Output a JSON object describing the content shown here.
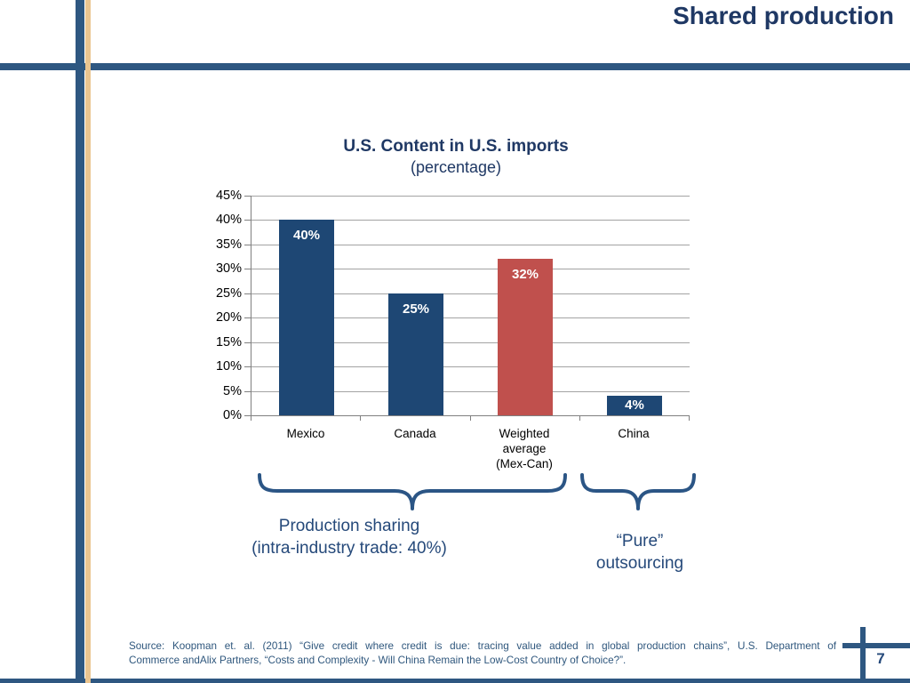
{
  "slide": {
    "title": "Shared production",
    "page_number": "7"
  },
  "chart_data": {
    "type": "bar",
    "title": "U.S. Content in U.S. imports",
    "subtitle": "(percentage)",
    "categories": [
      "Mexico",
      "Canada",
      "Weighted average (Mex-Can)",
      "China"
    ],
    "values": [
      40,
      25,
      32,
      4
    ],
    "bar_labels": [
      "40%",
      "25%",
      "32%",
      "4%"
    ],
    "bar_colors": [
      "#1e4774",
      "#1e4774",
      "#c0504d",
      "#1e4774"
    ],
    "xlabel": "",
    "ylabel": "",
    "ylim": [
      0,
      45
    ],
    "yticks": [
      "45%",
      "40%",
      "35%",
      "30%",
      "25%",
      "20%",
      "15%",
      "10%",
      "5%",
      "0%"
    ],
    "grid": true,
    "legend_position": "none"
  },
  "annotations": {
    "production_sharing": {
      "line1": "Production sharing",
      "line2": "(intra-industry trade: 40%)"
    },
    "pure_outsourcing": {
      "line1": "“Pure”",
      "line2": "outsourcing"
    }
  },
  "source": {
    "line1": "Source: Koopman et. al. (2011) “Give credit where credit is due: tracing value added in global production chains”, U.S. Department of",
    "line2": "Commerce andAlix Partners, “Costs and Complexity - Will China Remain the Low-Cost Country of Choice?”."
  },
  "colors": {
    "accent_navy": "#2e5781",
    "accent_tan": "#eac48f",
    "title_navy": "#1f3864",
    "bar_blue": "#1e4774",
    "bar_red": "#c0504d"
  }
}
